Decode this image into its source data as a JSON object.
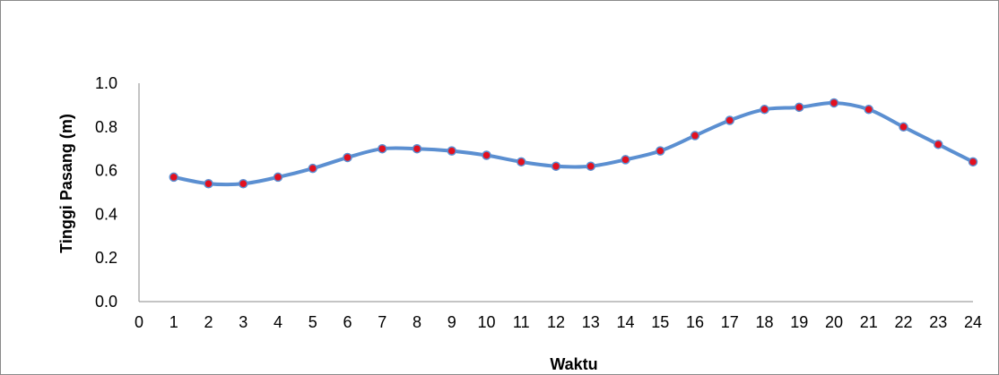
{
  "chart_data": {
    "type": "line",
    "title": "",
    "xlabel": "Waktu",
    "ylabel": "Tinggi  Pasang (m)",
    "x": [
      1,
      2,
      3,
      4,
      5,
      6,
      7,
      8,
      9,
      10,
      11,
      12,
      13,
      14,
      15,
      16,
      17,
      18,
      19,
      20,
      21,
      22,
      23,
      24
    ],
    "y": [
      0.57,
      0.54,
      0.54,
      0.57,
      0.61,
      0.66,
      0.7,
      0.7,
      0.69,
      0.67,
      0.64,
      0.62,
      0.62,
      0.65,
      0.69,
      0.76,
      0.83,
      0.88,
      0.89,
      0.91,
      0.88,
      0.8,
      0.72,
      0.64
    ],
    "xlim": [
      0,
      24
    ],
    "ylim": [
      0.0,
      1.0
    ],
    "x_ticks": [
      "0",
      "1",
      "2",
      "3",
      "4",
      "5",
      "6",
      "7",
      "8",
      "9",
      "10",
      "11",
      "12",
      "13",
      "14",
      "15",
      "16",
      "17",
      "18",
      "19",
      "20",
      "21",
      "22",
      "23",
      "24"
    ],
    "y_ticks": [
      "0.0",
      "0.2",
      "0.4",
      "0.6",
      "0.8",
      "1.0"
    ],
    "grid": false,
    "legend": "none",
    "line_color": "#5b8fd1",
    "marker_color": "#e3101f"
  }
}
